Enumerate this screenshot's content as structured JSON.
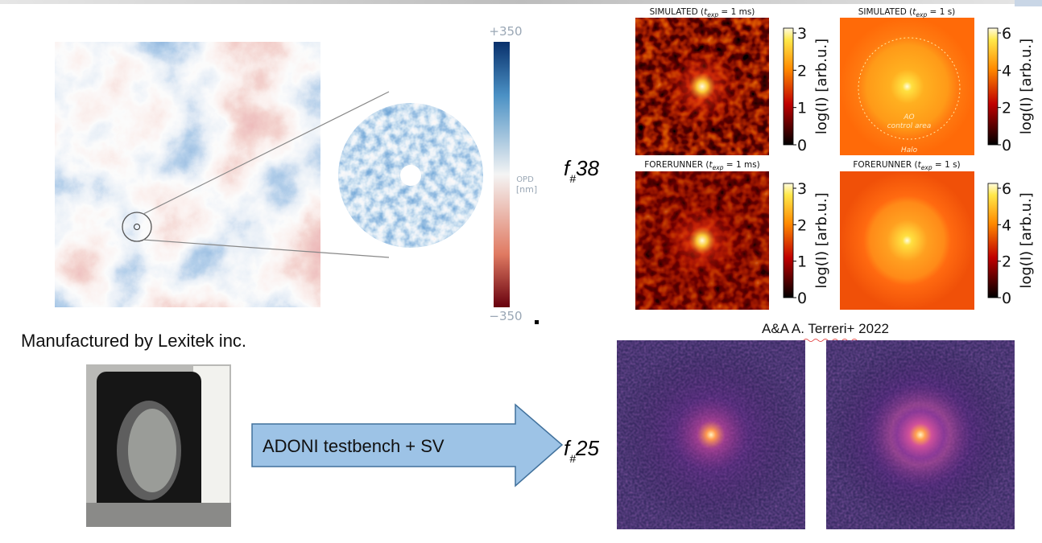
{
  "phase_screen": {
    "colorbar": {
      "max_label": "+350",
      "min_label": "−350",
      "label_line1": "OPD",
      "label_line2": "[nm]"
    }
  },
  "hardware": {
    "caption": "Manufactured by Lexitek inc.",
    "arrow_label": "ADONI testbench + SV"
  },
  "psf_top": {
    "f_number": {
      "symbol": "f",
      "subscript": "#",
      "value": "38"
    },
    "panels": [
      {
        "title_parts": [
          "SIMULATED (",
          "t",
          "exp",
          " = 1 ms)"
        ]
      },
      {
        "title_parts": [
          "SIMULATED (",
          "t",
          "exp",
          " = 1 s)"
        ],
        "annotations": [
          "AO",
          "control area",
          "Halo"
        ]
      },
      {
        "title_parts": [
          "FORERUNNER (",
          "t",
          "exp",
          " = 1 ms)"
        ]
      },
      {
        "title_parts": [
          "FORERUNNER (",
          "t",
          "exp",
          " = 1 s)"
        ]
      }
    ],
    "colorbars": [
      {
        "ticks": [
          0,
          1,
          2,
          3
        ],
        "label": "log(I) [arb.u.]"
      },
      {
        "ticks": [
          0,
          2,
          4,
          6
        ],
        "label": "log(I) [arb.u.]"
      }
    ]
  },
  "psf_bottom": {
    "reference": "A&A A. Terreri+ 2022",
    "f_number": {
      "symbol": "f",
      "subscript": "#",
      "value": "25"
    }
  }
}
